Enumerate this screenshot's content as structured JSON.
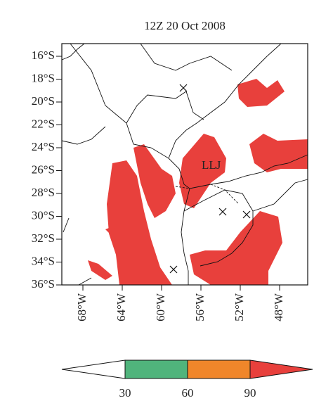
{
  "title": "12Z 20 Oct 2008",
  "annotation": "LLJ",
  "axes": {
    "lat_labels": [
      "16°S",
      "18°S",
      "20°S",
      "22°S",
      "24°S",
      "26°S",
      "28°S",
      "30°S",
      "32°S",
      "34°S",
      "36°S"
    ],
    "lon_labels": [
      "68°W",
      "64°W",
      "60°W",
      "56°W",
      "52°W",
      "48°W"
    ]
  },
  "colorbar": {
    "labels": [
      "30",
      "60",
      "90"
    ]
  }
}
